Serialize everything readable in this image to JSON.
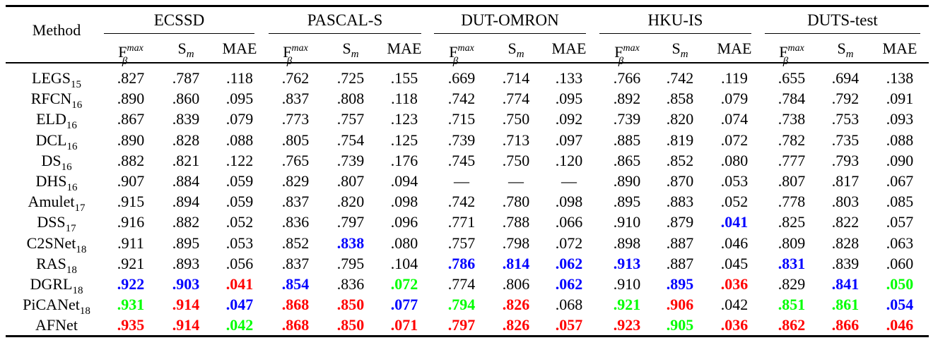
{
  "table": {
    "method_header": "Method",
    "datasets": [
      "ECSSD",
      "PASCAL-S",
      "DUT-OMRON",
      "HKU-IS",
      "DUTS-test"
    ],
    "metric_headers": {
      "f_base": "F",
      "f_sup": "max",
      "f_sub": "β",
      "s_base": "S",
      "s_sub": "m",
      "mae": "MAE"
    },
    "color_legend": {
      "red": "#ff0000",
      "blue": "#0000ff",
      "green": "#00ff00"
    },
    "rows": [
      {
        "name": "LEGS",
        "sub": "15",
        "values": [
          ".827",
          ".787",
          ".118",
          ".762",
          ".725",
          ".155",
          ".669",
          ".714",
          ".133",
          ".766",
          ".742",
          ".119",
          ".655",
          ".694",
          ".138"
        ],
        "colors": [
          "",
          "",
          "",
          "",
          "",
          "",
          "",
          "",
          "",
          "",
          "",
          "",
          "",
          "",
          ""
        ]
      },
      {
        "name": "RFCN",
        "sub": "16",
        "values": [
          ".890",
          ".860",
          ".095",
          ".837",
          ".808",
          ".118",
          ".742",
          ".774",
          ".095",
          ".892",
          ".858",
          ".079",
          ".784",
          ".792",
          ".091"
        ],
        "colors": [
          "",
          "",
          "",
          "",
          "",
          "",
          "",
          "",
          "",
          "",
          "",
          "",
          "",
          "",
          ""
        ]
      },
      {
        "name": "ELD",
        "sub": "16",
        "values": [
          ".867",
          ".839",
          ".079",
          ".773",
          ".757",
          ".123",
          ".715",
          ".750",
          ".092",
          ".739",
          ".820",
          ".074",
          ".738",
          ".753",
          ".093"
        ],
        "colors": [
          "",
          "",
          "",
          "",
          "",
          "",
          "",
          "",
          "",
          "",
          "",
          "",
          "",
          "",
          ""
        ]
      },
      {
        "name": "DCL",
        "sub": "16",
        "values": [
          ".890",
          ".828",
          ".088",
          ".805",
          ".754",
          ".125",
          ".739",
          ".713",
          ".097",
          ".885",
          ".819",
          ".072",
          ".782",
          ".735",
          ".088"
        ],
        "colors": [
          "",
          "",
          "",
          "",
          "",
          "",
          "",
          "",
          "",
          "",
          "",
          "",
          "",
          "",
          ""
        ]
      },
      {
        "name": "DS",
        "sub": "16",
        "values": [
          ".882",
          ".821",
          ".122",
          ".765",
          ".739",
          ".176",
          ".745",
          ".750",
          ".120",
          ".865",
          ".852",
          ".080",
          ".777",
          ".793",
          ".090"
        ],
        "colors": [
          "",
          "",
          "",
          "",
          "",
          "",
          "",
          "",
          "",
          "",
          "",
          "",
          "",
          "",
          ""
        ]
      },
      {
        "name": "DHS",
        "sub": "16",
        "values": [
          ".907",
          ".884",
          ".059",
          ".829",
          ".807",
          ".094",
          "—",
          "—",
          "—",
          ".890",
          ".870",
          ".053",
          ".807",
          ".817",
          ".067"
        ],
        "colors": [
          "",
          "",
          "",
          "",
          "",
          "",
          "",
          "",
          "",
          "",
          "",
          "",
          "",
          "",
          ""
        ]
      },
      {
        "name": "Amulet",
        "sub": "17",
        "values": [
          ".915",
          ".894",
          ".059",
          ".837",
          ".820",
          ".098",
          ".742",
          ".780",
          ".098",
          ".895",
          ".883",
          ".052",
          ".778",
          ".803",
          ".085"
        ],
        "colors": [
          "",
          "",
          "",
          "",
          "",
          "",
          "",
          "",
          "",
          "",
          "",
          "",
          "",
          "",
          ""
        ]
      },
      {
        "name": "DSS",
        "sub": "17",
        "values": [
          ".916",
          ".882",
          ".052",
          ".836",
          ".797",
          ".096",
          ".771",
          ".788",
          ".066",
          ".910",
          ".879",
          ".041",
          ".825",
          ".822",
          ".057"
        ],
        "colors": [
          "",
          "",
          "",
          "",
          "",
          "",
          "",
          "",
          "",
          "",
          "",
          "blue",
          "",
          "",
          ""
        ]
      },
      {
        "name": "C2SNet",
        "sub": "18",
        "values": [
          ".911",
          ".895",
          ".053",
          ".852",
          ".838",
          ".080",
          ".757",
          ".798",
          ".072",
          ".898",
          ".887",
          ".046",
          ".809",
          ".828",
          ".063"
        ],
        "colors": [
          "",
          "",
          "",
          "",
          "blue",
          "",
          "",
          "",
          "",
          "",
          "",
          "",
          "",
          "",
          ""
        ]
      },
      {
        "name": "RAS",
        "sub": "18",
        "values": [
          ".921",
          ".893",
          ".056",
          ".837",
          ".795",
          ".104",
          ".786",
          ".814",
          ".062",
          ".913",
          ".887",
          ".045",
          ".831",
          ".839",
          ".060"
        ],
        "colors": [
          "",
          "",
          "",
          "",
          "",
          "",
          "blue",
          "blue",
          "blue",
          "blue",
          "",
          "",
          "blue",
          "",
          ""
        ]
      },
      {
        "name": "DGRL",
        "sub": "18",
        "values": [
          ".922",
          ".903",
          ".041",
          ".854",
          ".836",
          ".072",
          ".774",
          ".806",
          ".062",
          ".910",
          ".895",
          ".036",
          ".829",
          ".841",
          ".050"
        ],
        "colors": [
          "blue",
          "blue",
          "red",
          "blue",
          "",
          "green",
          "",
          "",
          "blue",
          "",
          "blue",
          "red",
          "",
          "blue",
          "green"
        ]
      },
      {
        "name": "PiCANet",
        "sub": "18",
        "values": [
          ".931",
          ".914",
          ".047",
          ".868",
          ".850",
          ".077",
          ".794",
          ".826",
          ".068",
          ".921",
          ".906",
          ".042",
          ".851",
          ".861",
          ".054"
        ],
        "colors": [
          "green",
          "red",
          "blue",
          "red",
          "red",
          "blue",
          "green",
          "red",
          "",
          "green",
          "red",
          "",
          "green",
          "green",
          "blue"
        ]
      },
      {
        "name": "AFNet",
        "sub": "",
        "values": [
          ".935",
          ".914",
          ".042",
          ".868",
          ".850",
          ".071",
          ".797",
          ".826",
          ".057",
          ".923",
          ".905",
          ".036",
          ".862",
          ".866",
          ".046"
        ],
        "colors": [
          "red",
          "red",
          "green",
          "red",
          "red",
          "red",
          "red",
          "red",
          "red",
          "red",
          "green",
          "red",
          "red",
          "red",
          "red"
        ]
      }
    ]
  }
}
